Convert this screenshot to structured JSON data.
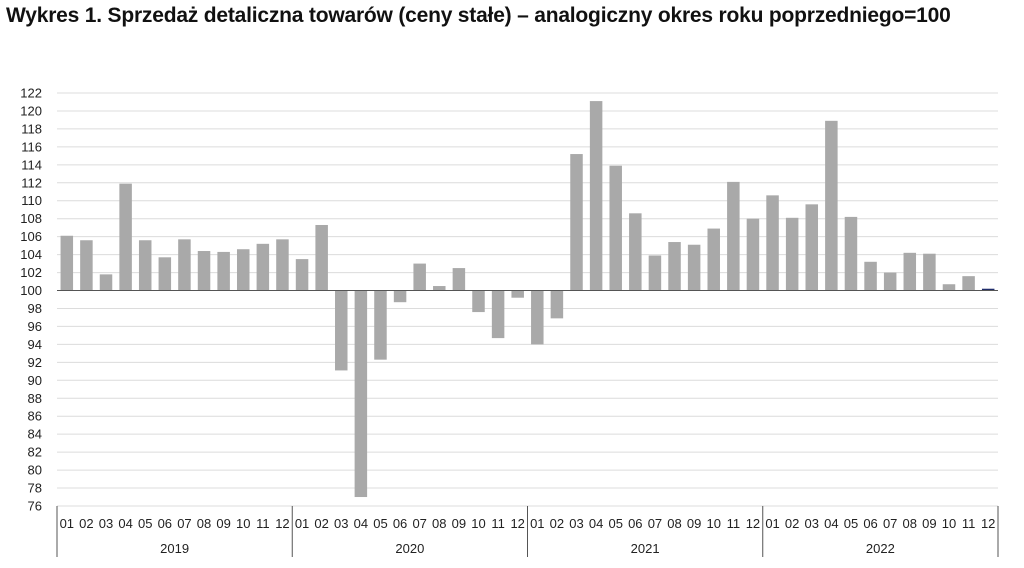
{
  "title": "Wykres 1. Sprzedaż detaliczna towarów (ceny stałe) – analogiczny okres roku poprzedniego=100",
  "colors": {
    "bar": "#a9a9a9",
    "highlight": "#1f2d6b",
    "grid": "#dcdcdc",
    "axis": "#555555"
  },
  "chart_data": {
    "type": "bar",
    "baseline": 100,
    "ylim": [
      76,
      122
    ],
    "yticks": [
      76,
      78,
      80,
      82,
      84,
      86,
      88,
      90,
      92,
      94,
      96,
      98,
      100,
      102,
      104,
      106,
      108,
      110,
      112,
      114,
      116,
      118,
      120,
      122
    ],
    "grid": true,
    "years": [
      "2019",
      "2020",
      "2021",
      "2022"
    ],
    "months": [
      "01",
      "02",
      "03",
      "04",
      "05",
      "06",
      "07",
      "08",
      "09",
      "10",
      "11",
      "12"
    ],
    "values": [
      106.1,
      105.6,
      101.8,
      111.9,
      105.6,
      103.7,
      105.7,
      104.4,
      104.3,
      104.6,
      105.2,
      105.7,
      103.5,
      107.3,
      91.1,
      77.0,
      92.3,
      98.7,
      103.0,
      100.5,
      102.5,
      97.6,
      94.7,
      99.2,
      94.0,
      96.9,
      115.2,
      121.1,
      113.9,
      108.6,
      103.9,
      105.4,
      105.1,
      106.9,
      112.1,
      108.0,
      110.6,
      108.1,
      109.6,
      118.9,
      108.2,
      103.2,
      102.0,
      104.2,
      104.1,
      100.7,
      101.6,
      100.2
    ],
    "highlight_index": 47
  }
}
